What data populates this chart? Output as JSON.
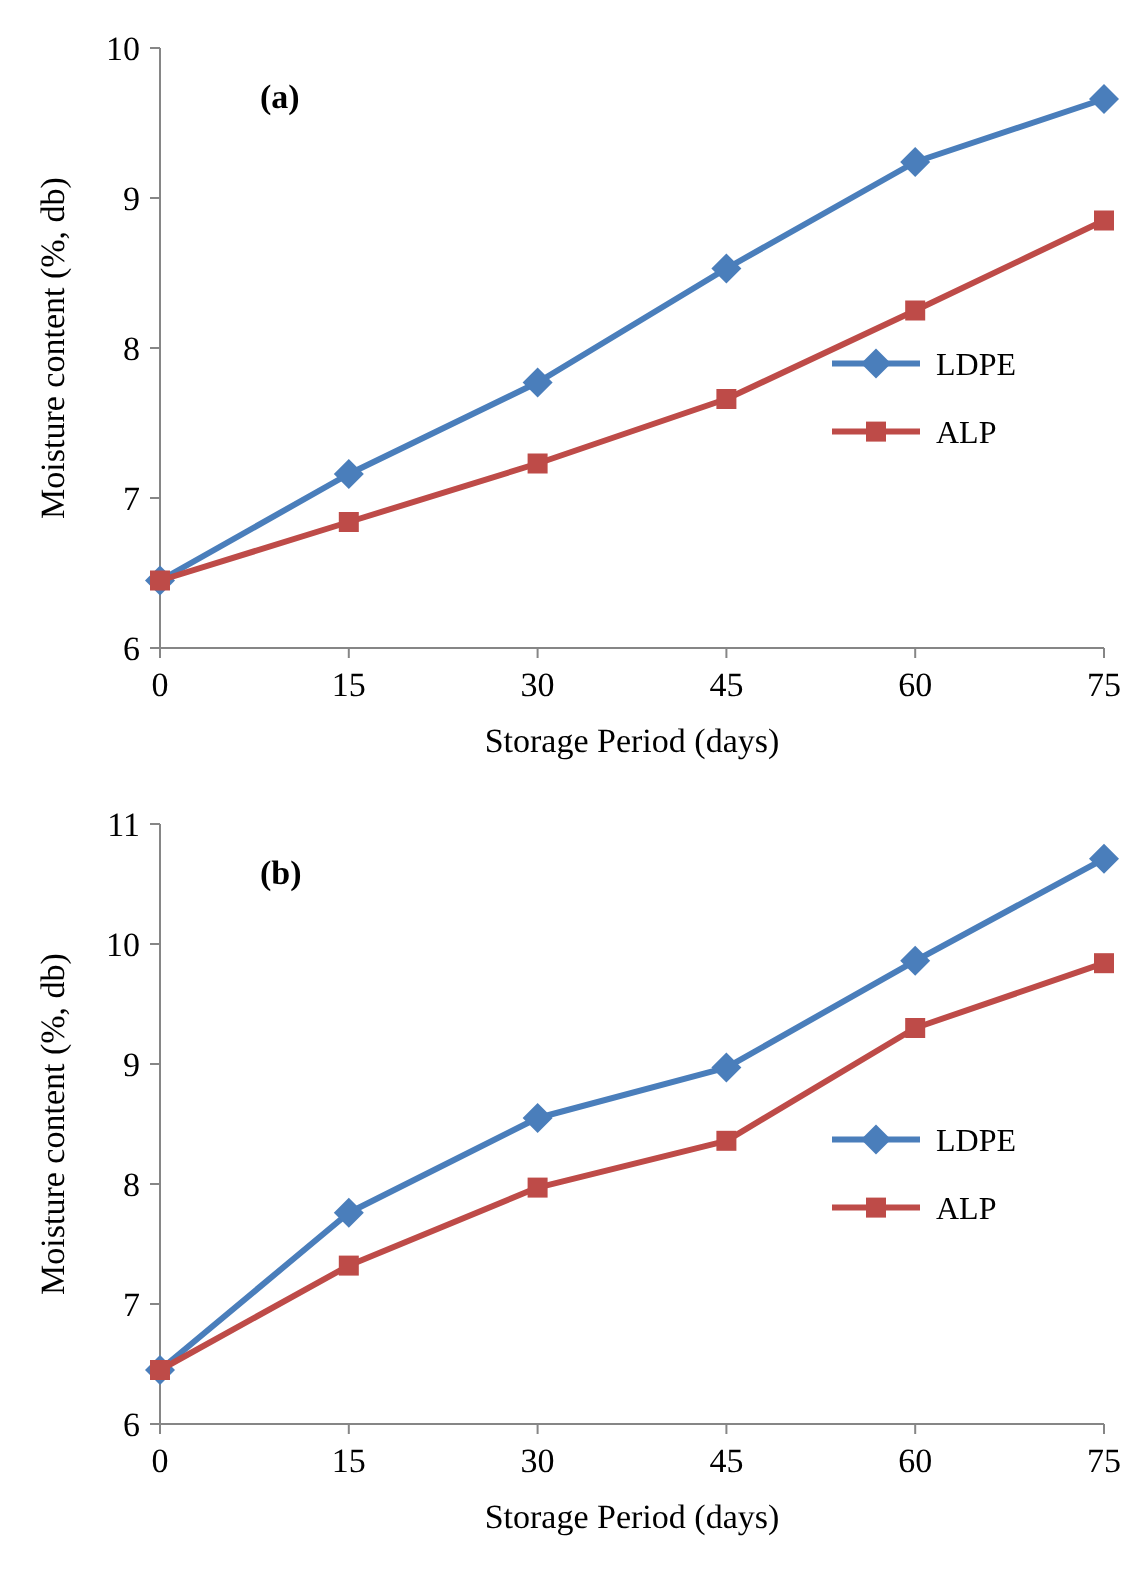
{
  "chart_data": [
    {
      "type": "line",
      "xlabel": "Storage Period (days)",
      "ylabel": "Moisture content (%, db)",
      "annotations": [
        "(a)"
      ],
      "x": [
        0,
        15,
        30,
        45,
        60,
        75
      ],
      "xlim": [
        0,
        75
      ],
      "xticks": [
        0,
        15,
        30,
        45,
        60,
        75
      ],
      "ylim": [
        6,
        10
      ],
      "yticks": [
        6,
        7,
        8,
        9,
        10
      ],
      "grid": false,
      "legend": "right",
      "series": [
        {
          "name": "LDPE",
          "color": "#4a7ebb",
          "marker": "diamond",
          "values": [
            6.45,
            7.16,
            7.77,
            8.53,
            9.24,
            9.66
          ]
        },
        {
          "name": "ALP",
          "color": "#be4b48",
          "marker": "square",
          "values": [
            6.45,
            6.84,
            7.23,
            7.66,
            8.25,
            8.85
          ]
        }
      ]
    },
    {
      "type": "line",
      "xlabel": "Storage Period (days)",
      "ylabel": "Moisture content (%, db)",
      "annotations": [
        "(b)"
      ],
      "x": [
        0,
        15,
        30,
        45,
        60,
        75
      ],
      "xlim": [
        0,
        75
      ],
      "xticks": [
        0,
        15,
        30,
        45,
        60,
        75
      ],
      "ylim": [
        6,
        11
      ],
      "yticks": [
        6,
        7,
        8,
        9,
        10,
        11
      ],
      "grid": false,
      "legend": "right",
      "series": [
        {
          "name": "LDPE",
          "color": "#4a7ebb",
          "marker": "diamond",
          "values": [
            6.45,
            7.76,
            8.55,
            8.97,
            9.86,
            10.71
          ]
        },
        {
          "name": "ALP",
          "color": "#be4b48",
          "marker": "square",
          "values": [
            6.45,
            7.32,
            7.97,
            8.36,
            9.3,
            9.84
          ]
        }
      ]
    }
  ]
}
